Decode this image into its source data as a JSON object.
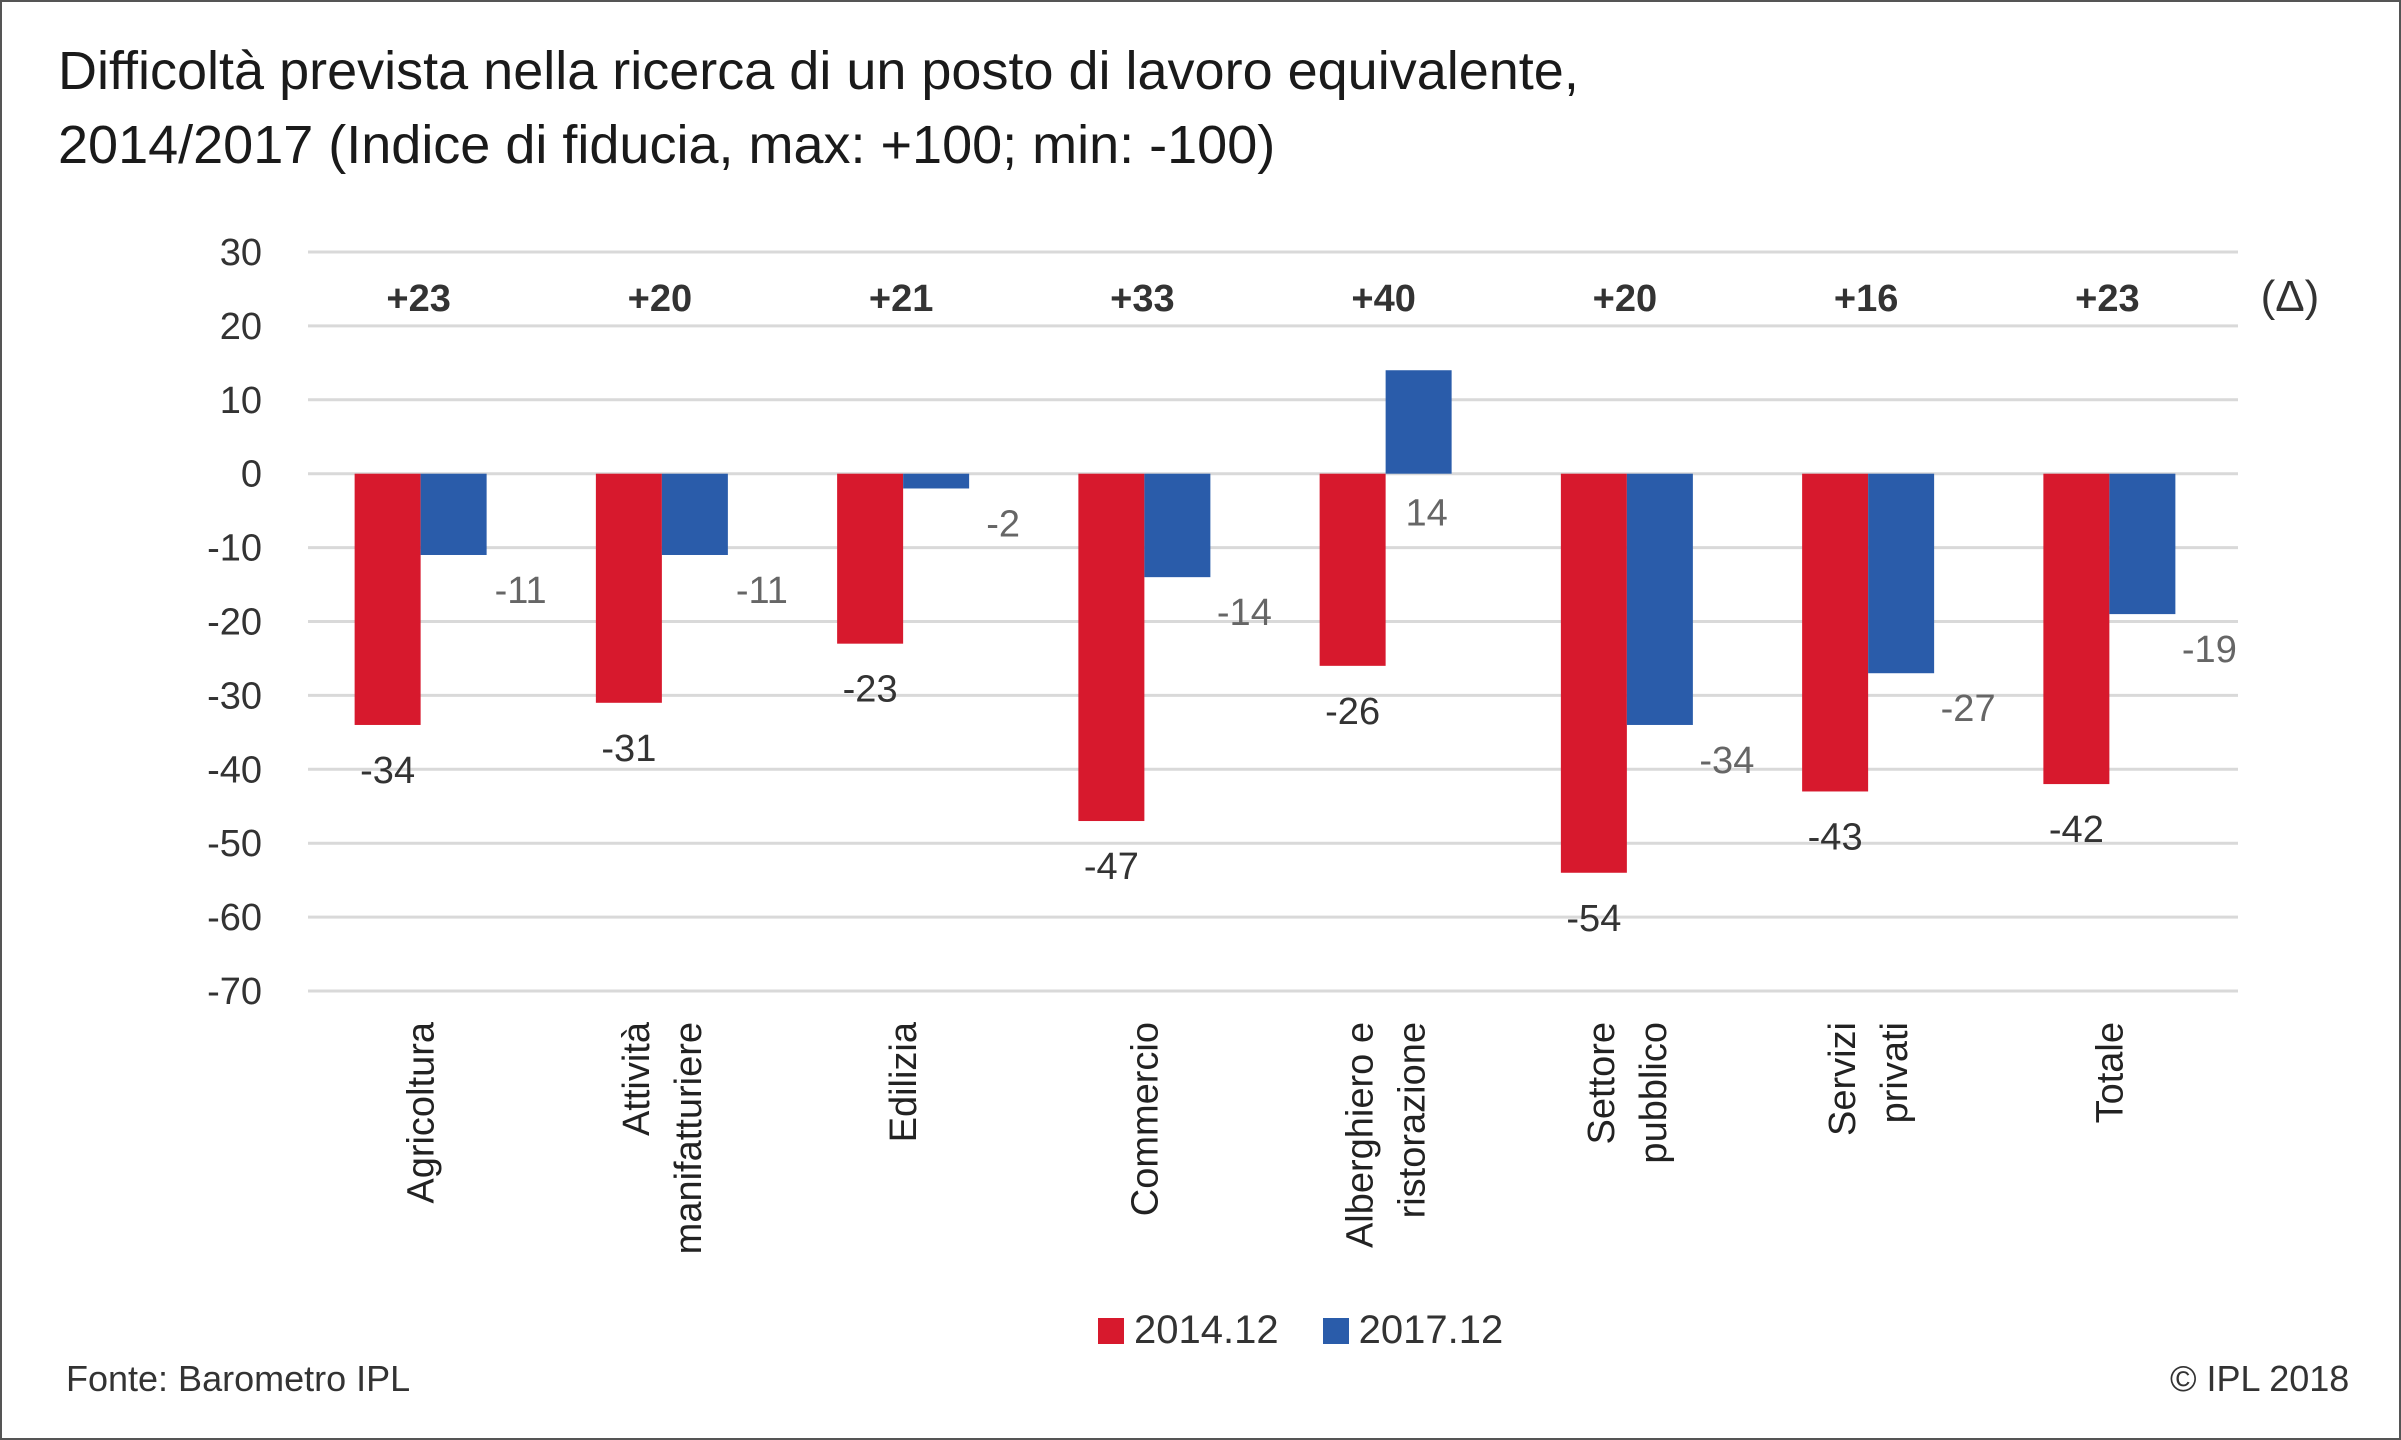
{
  "title": {
    "line1": "Difficoltà  prevista nella ricerca di un posto di lavoro equivalente,",
    "line2": "2014/2017  (Indice di fiducia, max: +100; min: -100)"
  },
  "colors": {
    "series_2014": "#d7192d",
    "series_2017": "#2a5caa",
    "grid": "#d9d9d9"
  },
  "chart_data": {
    "type": "bar",
    "categories": [
      [
        "Agricoltura"
      ],
      [
        "Attività",
        "manifatturiere"
      ],
      [
        "Edilizia"
      ],
      [
        "Commercio"
      ],
      [
        "Alberghiero e",
        "ristorazione"
      ],
      [
        "Settore",
        "pubblico"
      ],
      [
        "Servizi",
        "privati"
      ],
      [
        "Totale"
      ]
    ],
    "series": [
      {
        "name": "2014.12",
        "values": [
          -34,
          -31,
          -23,
          -47,
          -26,
          -54,
          -43,
          -42
        ]
      },
      {
        "name": "2017.12",
        "values": [
          -11,
          -11,
          -2,
          -14,
          14,
          -34,
          -27,
          -19
        ]
      }
    ],
    "delta_label": "(Δ)",
    "deltas": [
      "+23",
      "+20",
      "+21",
      "+33",
      "+40",
      "+20",
      "+16",
      "+23"
    ],
    "ylim": [
      -70,
      30
    ],
    "yticks": [
      30,
      20,
      10,
      0,
      -10,
      -20,
      -30,
      -40,
      -50,
      -60,
      -70
    ],
    "grid": true,
    "legend": "bottom"
  },
  "footer": {
    "source": "Fonte: Barometro IPL",
    "copyright": "© IPL 2018"
  }
}
